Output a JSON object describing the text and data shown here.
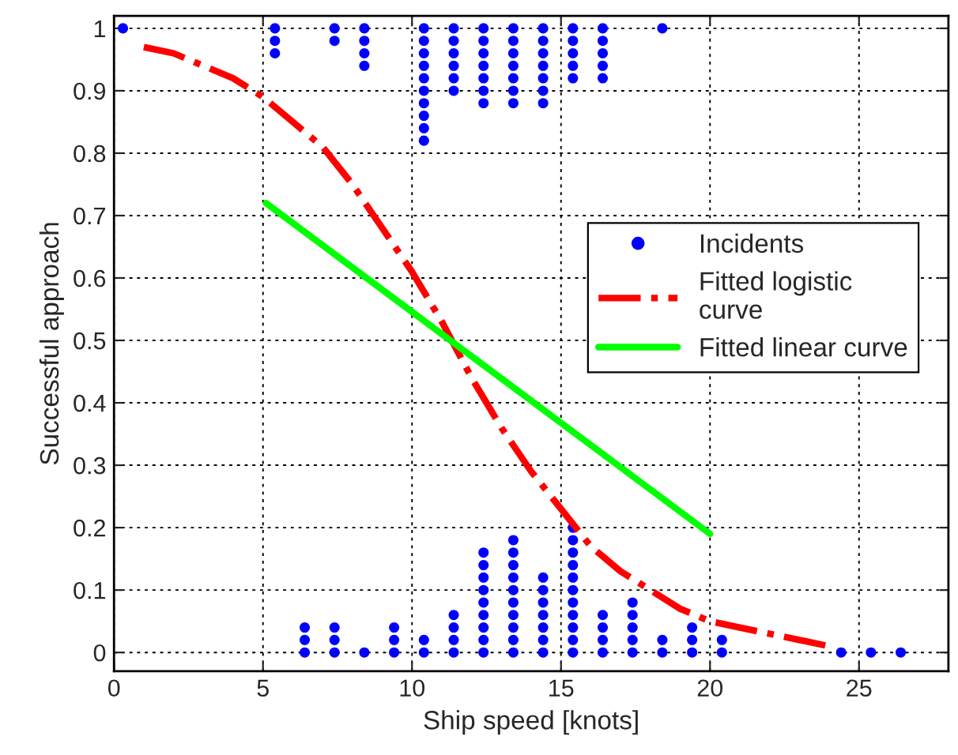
{
  "chart_data": {
    "type": "scatter",
    "xlabel": "Ship speed [knots]",
    "ylabel": "Successful approach",
    "xlim": [
      0,
      28
    ],
    "xticks": [
      0,
      5,
      10,
      15,
      20,
      25
    ],
    "ylim": [
      -0.03,
      1.02
    ],
    "yticks": [
      0,
      0.1,
      0.2,
      0.3,
      0.4,
      0.5,
      0.6,
      0.7,
      0.8,
      0.9,
      1
    ],
    "grid": true,
    "legend": "right",
    "series": [
      {
        "name": "Incidents",
        "marker": "circle",
        "color": "#0000ff",
        "x": [
          0.3,
          5.4,
          5.4,
          5.4,
          7.4,
          7.4,
          8.4,
          8.4,
          8.4,
          8.4,
          10.4,
          10.4,
          10.4,
          10.4,
          10.4,
          10.4,
          10.4,
          10.4,
          10.4,
          10.4,
          11.4,
          11.4,
          11.4,
          11.4,
          11.4,
          11.4,
          12.4,
          12.4,
          12.4,
          12.4,
          12.4,
          12.4,
          12.4,
          13.4,
          13.4,
          13.4,
          13.4,
          13.4,
          13.4,
          13.4,
          14.4,
          14.4,
          14.4,
          14.4,
          14.4,
          14.4,
          14.4,
          15.4,
          15.4,
          15.4,
          15.4,
          15.4,
          16.4,
          16.4,
          16.4,
          16.4,
          16.4,
          18.4,
          6.4,
          6.4,
          6.4,
          7.4,
          7.4,
          7.4,
          8.4,
          9.4,
          9.4,
          9.4,
          10.4,
          10.4,
          11.4,
          11.4,
          11.4,
          11.4,
          12.4,
          12.4,
          12.4,
          12.4,
          12.4,
          12.4,
          12.4,
          12.4,
          12.4,
          13.4,
          13.4,
          13.4,
          13.4,
          13.4,
          13.4,
          13.4,
          13.4,
          13.4,
          13.4,
          14.4,
          14.4,
          14.4,
          14.4,
          14.4,
          14.4,
          14.4,
          15.4,
          15.4,
          15.4,
          15.4,
          15.4,
          15.4,
          15.4,
          15.4,
          15.4,
          15.4,
          15.4,
          16.4,
          16.4,
          16.4,
          16.4,
          17.4,
          17.4,
          17.4,
          17.4,
          17.4,
          18.4,
          18.4,
          19.4,
          19.4,
          19.4,
          20.4,
          20.4,
          24.4,
          25.4,
          26.4
        ],
        "values": [
          1,
          1,
          0.98,
          0.96,
          1,
          0.98,
          1,
          0.98,
          0.96,
          0.94,
          1,
          0.98,
          0.96,
          0.94,
          0.92,
          0.9,
          0.88,
          0.86,
          0.84,
          0.82,
          1,
          0.98,
          0.96,
          0.94,
          0.92,
          0.9,
          1,
          0.98,
          0.96,
          0.94,
          0.92,
          0.9,
          0.88,
          1,
          0.98,
          0.96,
          0.94,
          0.92,
          0.9,
          0.88,
          1,
          0.98,
          0.96,
          0.94,
          0.92,
          0.9,
          0.88,
          1,
          0.98,
          0.96,
          0.94,
          0.92,
          1,
          0.98,
          0.96,
          0.94,
          0.92,
          1,
          0,
          0.02,
          0.04,
          0,
          0.02,
          0.04,
          0,
          0,
          0.02,
          0.04,
          0,
          0.02,
          0,
          0.02,
          0.04,
          0.06,
          0,
          0.02,
          0.04,
          0.06,
          0.08,
          0.1,
          0.12,
          0.14,
          0.16,
          0,
          0.02,
          0.04,
          0.06,
          0.08,
          0.1,
          0.12,
          0.14,
          0.16,
          0.18,
          0,
          0.02,
          0.04,
          0.06,
          0.08,
          0.1,
          0.12,
          0,
          0.02,
          0.04,
          0.06,
          0.08,
          0.1,
          0.12,
          0.14,
          0.16,
          0.18,
          0.2,
          0,
          0.02,
          0.04,
          0.06,
          0,
          0.02,
          0.04,
          0.06,
          0.08,
          0,
          0.02,
          0,
          0.02,
          0.04,
          0,
          0.02,
          0,
          0,
          0
        ]
      },
      {
        "name": "Fitted logistic curve",
        "type": "line",
        "line_style": "dashdot",
        "color": "#ff0000",
        "x": [
          1,
          2,
          3,
          4,
          5,
          6,
          7,
          8,
          9,
          10,
          11,
          12,
          13,
          14,
          15,
          16,
          17,
          18,
          19,
          20,
          21,
          22,
          23,
          24
        ],
        "values": [
          0.97,
          0.96,
          0.94,
          0.92,
          0.89,
          0.85,
          0.81,
          0.75,
          0.68,
          0.61,
          0.53,
          0.44,
          0.36,
          0.29,
          0.23,
          0.17,
          0.13,
          0.1,
          0.07,
          0.05,
          0.04,
          0.03,
          0.02,
          0.01
        ]
      },
      {
        "name": "Fitted linear curve",
        "type": "line",
        "line_style": "solid",
        "color": "#00ff00",
        "x": [
          5.1,
          20
        ],
        "values": [
          0.72,
          0.19
        ]
      }
    ]
  }
}
